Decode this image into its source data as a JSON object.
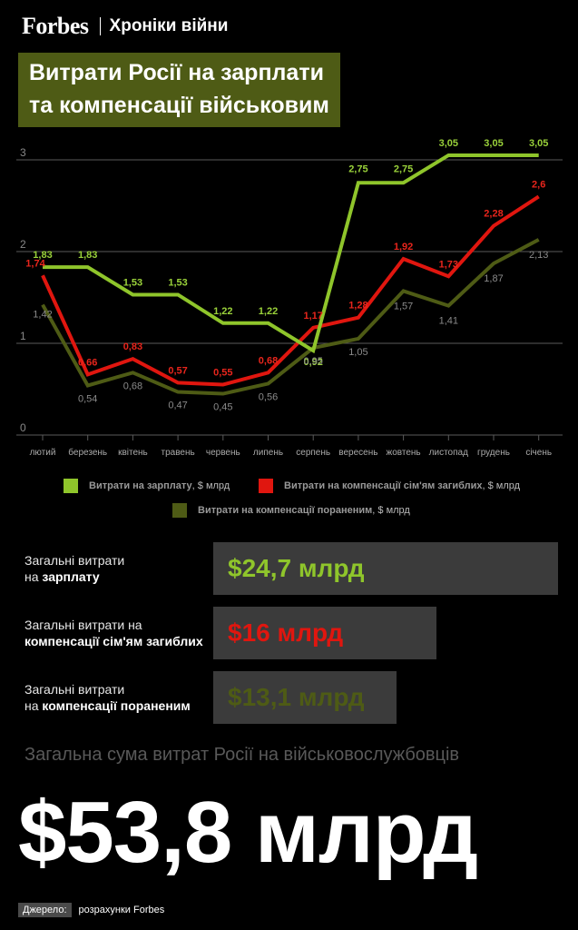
{
  "header": {
    "brand": "Forbes",
    "section": "Хроніки війни"
  },
  "title_lines": [
    "Витрати Росії на зарплати",
    "та компенсації військовим"
  ],
  "chart_data": {
    "type": "line",
    "categories": [
      "лютий",
      "березень",
      "квітень",
      "травень",
      "червень",
      "липень",
      "серпень",
      "вересень",
      "жовтень",
      "листопад",
      "грудень",
      "січень"
    ],
    "ylim": [
      0,
      3
    ],
    "yticks": [
      "0",
      "1",
      "2",
      "3"
    ],
    "grid": true,
    "series": [
      {
        "name": "Витрати на зарплату",
        "color": "#8fc52b",
        "values": [
          1.83,
          1.83,
          1.53,
          1.53,
          1.22,
          1.22,
          0.92,
          2.75,
          2.75,
          3.05,
          3.05,
          3.05
        ],
        "labels": [
          "1,83",
          "1,83",
          "1,53",
          "1,53",
          "1,22",
          "1,22",
          "0,92",
          "2,75",
          "2,75",
          "3,05",
          "3,05",
          "3,05"
        ]
      },
      {
        "name": "Витрати на компенсації сім'ям загиблих",
        "color": "#e0160f",
        "values": [
          1.74,
          0.66,
          0.83,
          0.57,
          0.55,
          0.68,
          1.17,
          1.28,
          1.92,
          1.73,
          2.28,
          2.6
        ],
        "labels": [
          "1,74",
          "0,66",
          "0,83",
          "0,57",
          "0,55",
          "0,68",
          "1,17",
          "1,28",
          "1,92",
          "1,73",
          "2,28",
          "2,6"
        ]
      },
      {
        "name": "Витрати на компенсації пораненим",
        "color": "#4e5b15",
        "values": [
          1.42,
          0.54,
          0.68,
          0.47,
          0.45,
          0.56,
          0.95,
          1.05,
          1.57,
          1.41,
          1.87,
          2.13
        ],
        "labels": [
          "1,42",
          "0,54",
          "0,68",
          "0,47",
          "0,45",
          "0,56",
          "0,95",
          "1,05",
          "1,57",
          "1,41",
          "1,87",
          "2,13"
        ]
      }
    ]
  },
  "legend": [
    {
      "bold": "Витрати на зарплату",
      "unit": ", $ млрд",
      "color": "#8fc52b"
    },
    {
      "bold": "Витрати на компенсації сім'ям загиблих",
      "unit": ", $ млрд",
      "color": "#e0160f"
    },
    {
      "bold": "Витрати на компенсації пораненим",
      "unit": ", $ млрд",
      "color": "#4e5b15"
    }
  ],
  "totals": [
    {
      "line1": "Загальні витрати",
      "line2_plain": "на ",
      "line2_bold": "зарплату",
      "value": "$24,7 млрд",
      "amount": 24.7,
      "color": "#8fc52b"
    },
    {
      "line1": "Загальні витрати на",
      "line2_plain": "",
      "line2_bold": "компенсації сім'ям загиблих",
      "value": "$16 млрд",
      "amount": 16,
      "color": "#e0160f"
    },
    {
      "line1": "Загальні витрати",
      "line2_plain": "на ",
      "line2_bold": "компенсації пораненим",
      "value": "$13,1 млрд",
      "amount": 13.1,
      "color": "#4e5b15"
    }
  ],
  "grand_total": {
    "label": "Загальна сума витрат Росії на військовослужбовців",
    "value": "$53,8 млрд"
  },
  "source": {
    "tag": "Джерело:",
    "text": "розрахунки Forbes"
  }
}
